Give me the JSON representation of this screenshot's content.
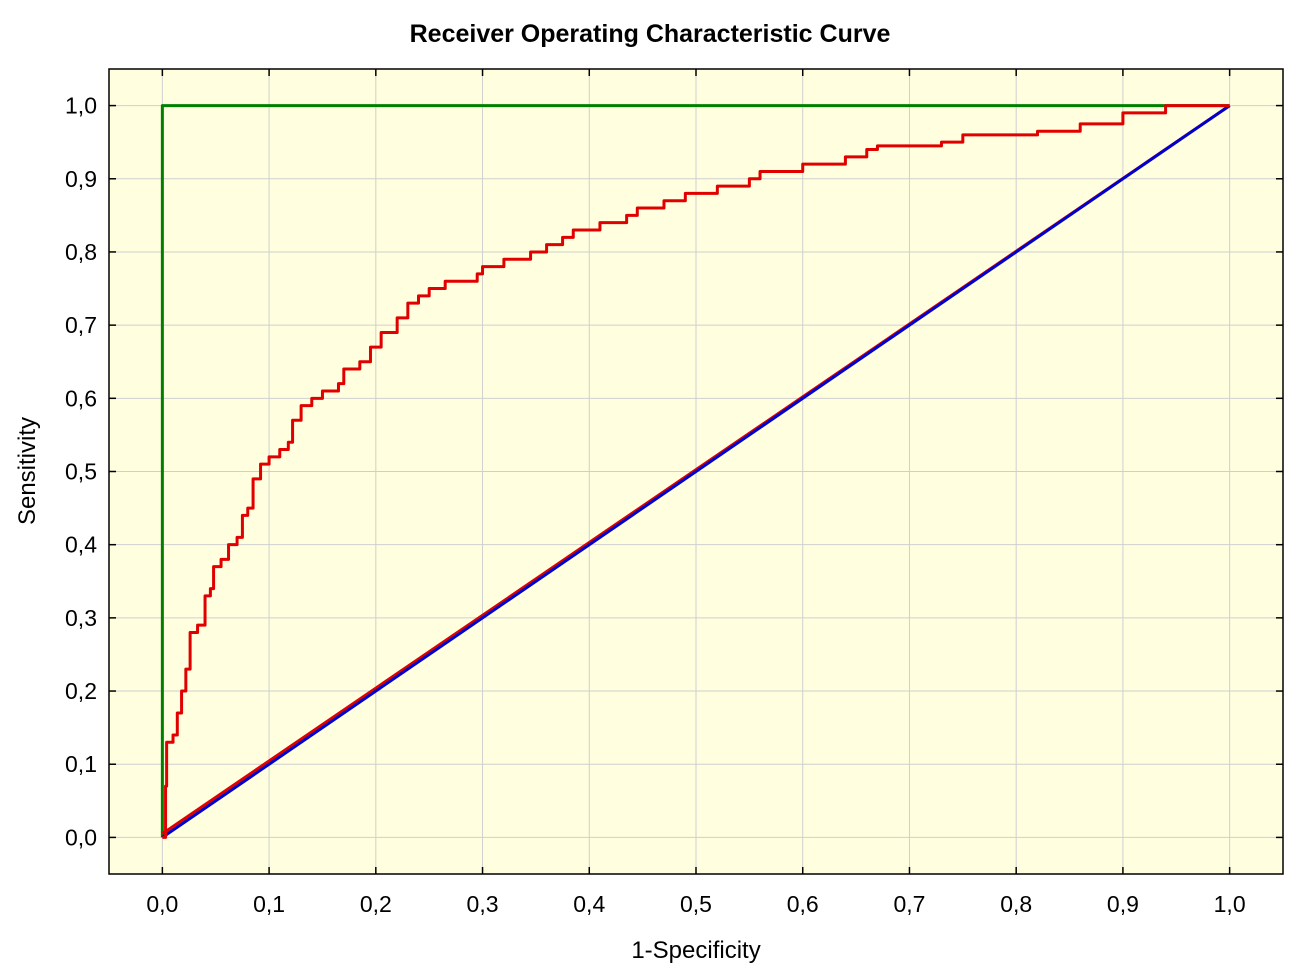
{
  "chart_data": {
    "type": "line",
    "title": "Receiver Operating Characteristic Curve",
    "xlabel": "1-Specificity",
    "ylabel": "Sensitivity",
    "xlim": [
      -0.05,
      1.05
    ],
    "ylim": [
      -0.05,
      1.05
    ],
    "x_ticks": [
      0.0,
      0.1,
      0.2,
      0.3,
      0.4,
      0.5,
      0.6,
      0.7,
      0.8,
      0.9,
      1.0
    ],
    "y_ticks": [
      0.0,
      0.1,
      0.2,
      0.3,
      0.4,
      0.5,
      0.6,
      0.7,
      0.8,
      0.9,
      1.0
    ],
    "x_tick_labels": [
      "0,0",
      "0,1",
      "0,2",
      "0,3",
      "0,4",
      "0,5",
      "0,6",
      "0,7",
      "0,8",
      "0,9",
      "1,0"
    ],
    "y_tick_labels": [
      "0,0",
      "0,1",
      "0,2",
      "0,3",
      "0,4",
      "0,5",
      "0,6",
      "0,7",
      "0,8",
      "0,9",
      "1,0"
    ],
    "grid": true,
    "background_color": "#ffffe0",
    "grid_color": "#cfcfcf",
    "series": [
      {
        "color": "#e00000",
        "points": [
          [
            0,
            0
          ],
          [
            0.003,
            0.07
          ],
          [
            0.004,
            0.13
          ],
          [
            0.01,
            0.14
          ],
          [
            0.014,
            0.17
          ],
          [
            0.018,
            0.2
          ],
          [
            0.022,
            0.23
          ],
          [
            0.026,
            0.28
          ],
          [
            0.033,
            0.29
          ],
          [
            0.04,
            0.33
          ],
          [
            0.045,
            0.34
          ],
          [
            0.048,
            0.37
          ],
          [
            0.055,
            0.38
          ],
          [
            0.062,
            0.4
          ],
          [
            0.07,
            0.41
          ],
          [
            0.075,
            0.44
          ],
          [
            0.08,
            0.45
          ],
          [
            0.085,
            0.49
          ],
          [
            0.092,
            0.51
          ],
          [
            0.1,
            0.52
          ],
          [
            0.11,
            0.53
          ],
          [
            0.118,
            0.54
          ],
          [
            0.122,
            0.57
          ],
          [
            0.13,
            0.59
          ],
          [
            0.14,
            0.6
          ],
          [
            0.15,
            0.61
          ],
          [
            0.165,
            0.62
          ],
          [
            0.17,
            0.64
          ],
          [
            0.185,
            0.65
          ],
          [
            0.195,
            0.67
          ],
          [
            0.205,
            0.69
          ],
          [
            0.22,
            0.71
          ],
          [
            0.23,
            0.73
          ],
          [
            0.24,
            0.74
          ],
          [
            0.25,
            0.75
          ],
          [
            0.265,
            0.76
          ],
          [
            0.295,
            0.77
          ],
          [
            0.3,
            0.78
          ],
          [
            0.32,
            0.79
          ],
          [
            0.345,
            0.8
          ],
          [
            0.36,
            0.81
          ],
          [
            0.375,
            0.82
          ],
          [
            0.385,
            0.83
          ],
          [
            0.41,
            0.84
          ],
          [
            0.435,
            0.85
          ],
          [
            0.445,
            0.86
          ],
          [
            0.47,
            0.87
          ],
          [
            0.49,
            0.88
          ],
          [
            0.52,
            0.89
          ],
          [
            0.55,
            0.9
          ],
          [
            0.56,
            0.91
          ],
          [
            0.6,
            0.92
          ],
          [
            0.64,
            0.93
          ],
          [
            0.66,
            0.94
          ],
          [
            0.67,
            0.945
          ],
          [
            0.73,
            0.95
          ],
          [
            0.75,
            0.96
          ],
          [
            0.82,
            0.965
          ],
          [
            0.86,
            0.975
          ],
          [
            0.9,
            0.99
          ],
          [
            0.94,
            1.0
          ],
          [
            1.0,
            1.0
          ]
        ]
      },
      {
        "color": "#008000",
        "points": [
          [
            0,
            0
          ],
          [
            0,
            1.0
          ],
          [
            1.0,
            1.0
          ]
        ]
      },
      {
        "color": "#0000cc",
        "points": [
          [
            0,
            0
          ],
          [
            1.0,
            1.0
          ]
        ]
      },
      {
        "color": "#e00000",
        "points": [
          [
            0,
            0.005
          ],
          [
            1.0,
            1.0
          ]
        ]
      }
    ]
  }
}
